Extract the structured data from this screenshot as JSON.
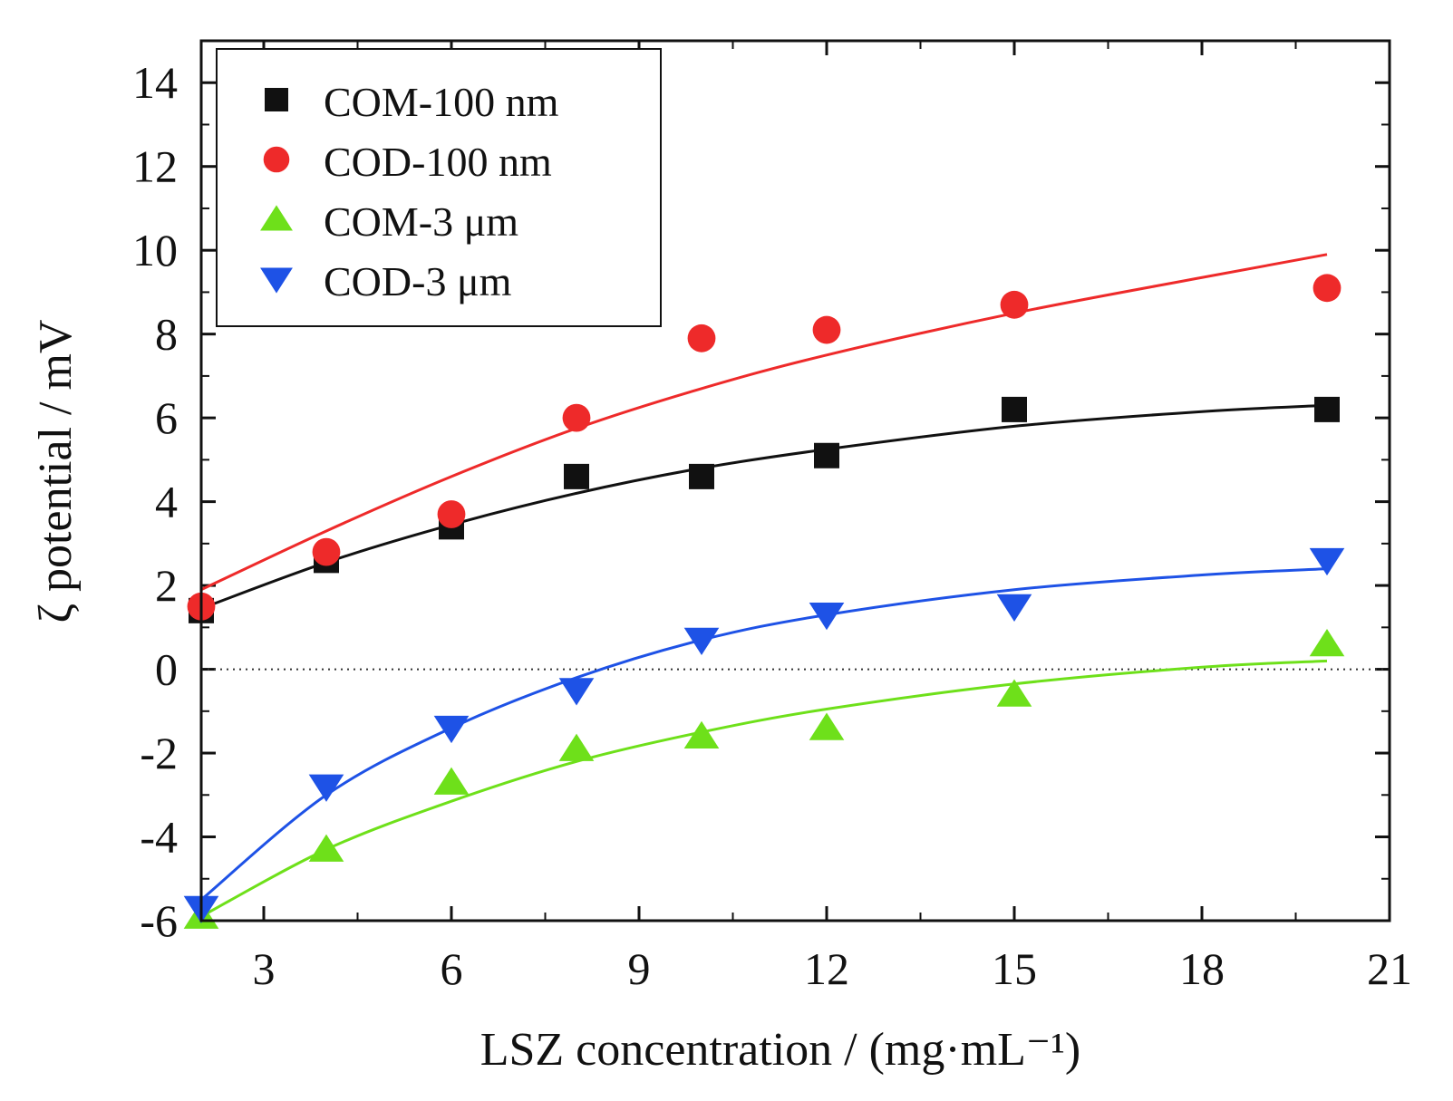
{
  "chart_data": {
    "type": "scatter",
    "xlabel": "LSZ concentration / (mg·mL⁻¹)",
    "ylabel": "ζ potential / mV",
    "xlim": [
      2,
      21
    ],
    "ylim": [
      -6,
      15
    ],
    "xticks": [
      3,
      6,
      9,
      12,
      15,
      18,
      21
    ],
    "yticks": [
      -6,
      -4,
      -2,
      0,
      2,
      4,
      6,
      8,
      10,
      12,
      14
    ],
    "grid": false,
    "legend_position": "top-left",
    "reference_line": {
      "y": 0,
      "style": "dotted"
    },
    "series": [
      {
        "name": "COM-100 nm",
        "marker": "square",
        "color": "#111111",
        "x": [
          2,
          4,
          6,
          8,
          10,
          12,
          15,
          20
        ],
        "y": [
          1.4,
          2.6,
          3.4,
          4.6,
          4.6,
          5.1,
          6.2,
          6.2
        ],
        "fit": [
          [
            2,
            1.45
          ],
          [
            4,
            2.55
          ],
          [
            6,
            3.45
          ],
          [
            8,
            4.2
          ],
          [
            10,
            4.8
          ],
          [
            12,
            5.25
          ],
          [
            15,
            5.8
          ],
          [
            18,
            6.15
          ],
          [
            20,
            6.3
          ]
        ]
      },
      {
        "name": "COD-100 nm",
        "marker": "circle",
        "color": "#ee2a2a",
        "x": [
          2,
          4,
          6,
          8,
          10,
          12,
          15,
          20
        ],
        "y": [
          1.5,
          2.8,
          3.7,
          6.0,
          7.9,
          8.1,
          8.7,
          9.1
        ],
        "fit": [
          [
            2,
            1.9
          ],
          [
            4,
            3.3
          ],
          [
            6,
            4.6
          ],
          [
            8,
            5.75
          ],
          [
            10,
            6.7
          ],
          [
            12,
            7.5
          ],
          [
            15,
            8.5
          ],
          [
            18,
            9.35
          ],
          [
            20,
            9.9
          ]
        ]
      },
      {
        "name": "COM-3 μm",
        "marker": "triangle-up",
        "color": "#6ee01a",
        "x": [
          2,
          4,
          6,
          8,
          10,
          12,
          15,
          20
        ],
        "y": [
          -5.9,
          -4.3,
          -2.7,
          -1.9,
          -1.6,
          -1.4,
          -0.6,
          0.6
        ],
        "fit": [
          [
            2,
            -5.9
          ],
          [
            4,
            -4.3
          ],
          [
            6,
            -3.15
          ],
          [
            8,
            -2.2
          ],
          [
            10,
            -1.5
          ],
          [
            12,
            -0.95
          ],
          [
            15,
            -0.35
          ],
          [
            18,
            0.05
          ],
          [
            20,
            0.2
          ]
        ]
      },
      {
        "name": "COD-3 μm",
        "marker": "triangle-down",
        "color": "#1e52e6",
        "x": [
          2,
          4,
          6,
          8,
          10,
          12,
          15,
          20
        ],
        "y": [
          -5.7,
          -2.8,
          -1.4,
          -0.5,
          0.7,
          1.3,
          1.5,
          2.6
        ],
        "fit": [
          [
            2,
            -5.5
          ],
          [
            4,
            -3.0
          ],
          [
            6,
            -1.4
          ],
          [
            8,
            -0.2
          ],
          [
            10,
            0.7
          ],
          [
            12,
            1.3
          ],
          [
            15,
            1.9
          ],
          [
            18,
            2.25
          ],
          [
            20,
            2.4
          ]
        ]
      }
    ]
  }
}
